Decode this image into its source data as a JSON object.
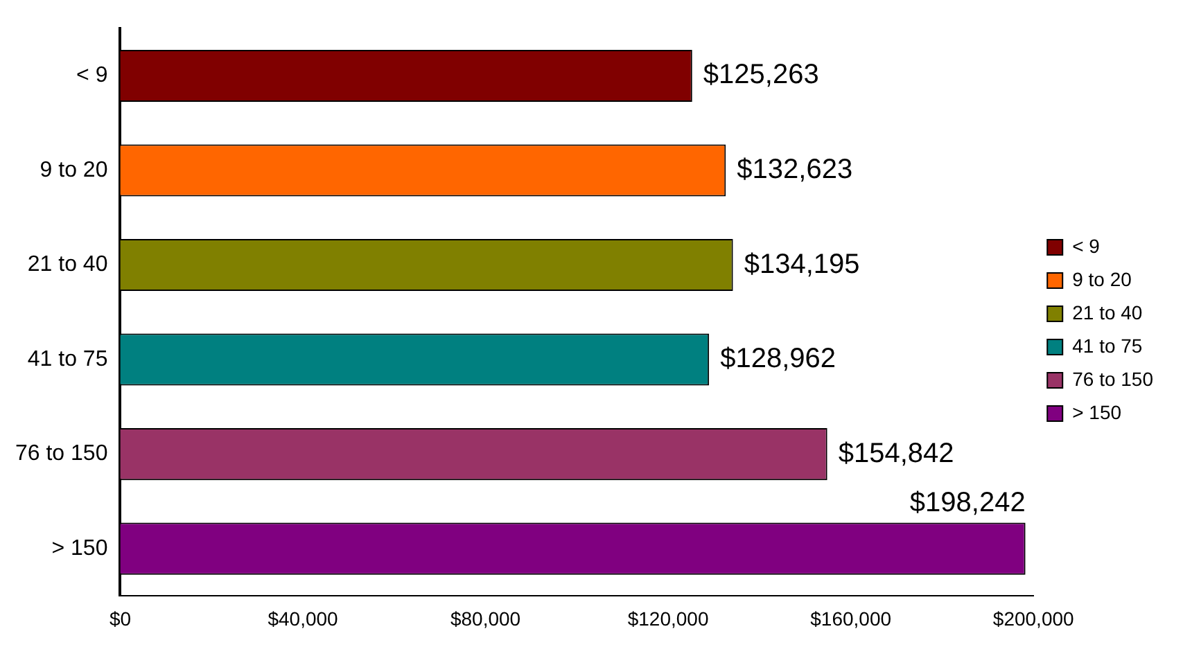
{
  "chart_data": {
    "type": "bar",
    "orientation": "horizontal",
    "categories": [
      "< 9",
      "9 to 20",
      "21 to 40",
      "41 to 75",
      "76 to 150",
      "> 150"
    ],
    "series": [
      {
        "name": "< 9",
        "color": "#800000",
        "values": [
          125263,
          null,
          null,
          null,
          null,
          null
        ],
        "value_labels": [
          "$125,263",
          null,
          null,
          null,
          null,
          null
        ]
      },
      {
        "name": "9 to 20",
        "color": "#ff6600",
        "values": [
          null,
          132623,
          null,
          null,
          null,
          null
        ],
        "value_labels": [
          null,
          "$132,623",
          null,
          null,
          null,
          null
        ]
      },
      {
        "name": "21 to 40",
        "color": "#808000",
        "values": [
          null,
          null,
          134195,
          null,
          null,
          null
        ],
        "value_labels": [
          null,
          null,
          "$134,195",
          null,
          null,
          null
        ]
      },
      {
        "name": "41 to 75",
        "color": "#008080",
        "values": [
          null,
          null,
          null,
          128962,
          null,
          null
        ],
        "value_labels": [
          null,
          null,
          null,
          "$128,962",
          null,
          null
        ]
      },
      {
        "name": "76 to 150",
        "color": "#993366",
        "values": [
          null,
          null,
          null,
          null,
          154842,
          null
        ],
        "value_labels": [
          null,
          null,
          null,
          null,
          "$154,842",
          null
        ]
      },
      {
        "name": "> 150",
        "color": "#800080",
        "values": [
          null,
          null,
          null,
          null,
          null,
          198242
        ],
        "value_labels": [
          null,
          null,
          null,
          null,
          null,
          "$198,242"
        ]
      }
    ],
    "xlim": [
      0,
      200000
    ],
    "xticks": [
      {
        "value": 0,
        "label": "$0"
      },
      {
        "value": 40000,
        "label": "$40,000"
      },
      {
        "value": 80000,
        "label": "$80,000"
      },
      {
        "value": 120000,
        "label": "$120,000"
      },
      {
        "value": 160000,
        "label": "$160,000"
      },
      {
        "value": 200000,
        "label": "$200,000"
      }
    ],
    "grid": false,
    "legend": "right"
  }
}
